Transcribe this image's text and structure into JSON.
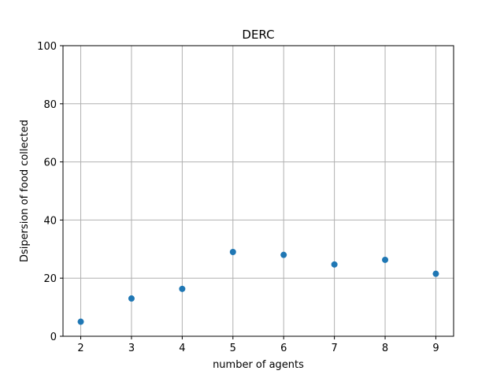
{
  "chart_data": {
    "type": "scatter",
    "title": "DERC",
    "xlabel": "number of agents",
    "ylabel": "Dsipersion of food collected",
    "x": [
      2,
      3,
      4,
      5,
      6,
      7,
      8,
      9
    ],
    "y": [
      5.0,
      13.0,
      16.3,
      29.0,
      28.0,
      24.7,
      26.3,
      21.5
    ],
    "xlim": [
      1.65,
      9.35
    ],
    "ylim": [
      0,
      100
    ],
    "xticks": [
      2,
      3,
      4,
      5,
      6,
      7,
      8,
      9
    ],
    "yticks": [
      0,
      20,
      40,
      60,
      80,
      100
    ],
    "grid": true,
    "marker_color": "#1f77b4",
    "grid_color": "#b0b0b0"
  }
}
